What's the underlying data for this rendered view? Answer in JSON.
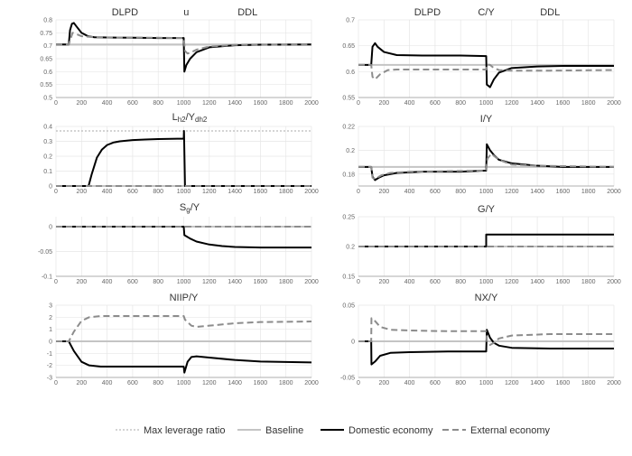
{
  "legend": [
    {
      "label": "Max leverage ratio",
      "color": "#aaaaaa",
      "dash": "2,2",
      "width": 1
    },
    {
      "label": "Baseline",
      "color": "#c4c4c4",
      "dash": "",
      "width": 2
    },
    {
      "label": "Domestic economy",
      "color": "#000000",
      "dash": "",
      "width": 2
    },
    {
      "label": "External economy",
      "color": "#8c8c8c",
      "dash": "7,4",
      "width": 2
    }
  ],
  "chart_data": [
    {
      "type": "line",
      "title": "",
      "phase_labels": [
        "DLPD",
        "u",
        "DDL"
      ],
      "xlim": [
        0,
        2000
      ],
      "xticks": [
        "0",
        "200",
        "400",
        "600",
        "800",
        "1000",
        "1200",
        "1400",
        "1600",
        "1800",
        "2000"
      ],
      "ylim": [
        0.5,
        0.8
      ],
      "yticks": [
        "0.5",
        "0.55",
        "0.6",
        "0.65",
        "0.7",
        "0.75",
        "0.8"
      ],
      "series": [
        {
          "name": "Baseline",
          "x": [
            0,
            2000
          ],
          "y": [
            0.705,
            0.705
          ]
        },
        {
          "name": "External economy",
          "x": [
            0,
            100,
            110,
            130,
            160,
            200,
            300,
            500,
            800,
            1000,
            1010,
            1030,
            1060,
            1100,
            1200,
            1400,
            2000
          ],
          "y": [
            0.705,
            0.705,
            0.72,
            0.75,
            0.745,
            0.737,
            0.733,
            0.732,
            0.731,
            0.73,
            0.68,
            0.67,
            0.675,
            0.685,
            0.697,
            0.703,
            0.705
          ]
        },
        {
          "name": "Domestic economy",
          "x": [
            0,
            100,
            110,
            125,
            140,
            160,
            200,
            250,
            300,
            400,
            600,
            800,
            1000,
            1005,
            1020,
            1050,
            1100,
            1200,
            1400,
            1600,
            2000
          ],
          "y": [
            0.705,
            0.705,
            0.76,
            0.785,
            0.788,
            0.775,
            0.75,
            0.737,
            0.733,
            0.732,
            0.731,
            0.73,
            0.73,
            0.6,
            0.625,
            0.65,
            0.675,
            0.694,
            0.702,
            0.704,
            0.705
          ]
        }
      ]
    },
    {
      "type": "line",
      "title": "C/Y",
      "phase_labels": [
        "DLPD",
        "",
        "DDL"
      ],
      "xlim": [
        0,
        2000
      ],
      "xticks": [
        "0",
        "200",
        "400",
        "600",
        "800",
        "1000",
        "1200",
        "1400",
        "1600",
        "1800",
        "2000"
      ],
      "ylim": [
        0.55,
        0.7
      ],
      "yticks": [
        "0.55",
        "0.6",
        "0.65",
        "0.7"
      ],
      "series": [
        {
          "name": "Baseline",
          "x": [
            0,
            2000
          ],
          "y": [
            0.613,
            0.613
          ]
        },
        {
          "name": "External economy",
          "x": [
            0,
            100,
            110,
            130,
            170,
            230,
            300,
            600,
            1000,
            1005,
            1030,
            1060,
            1100,
            1200,
            1500,
            2000
          ],
          "y": [
            0.613,
            0.613,
            0.59,
            0.585,
            0.595,
            0.603,
            0.604,
            0.604,
            0.604,
            0.614,
            0.613,
            0.607,
            0.603,
            0.602,
            0.602,
            0.603
          ]
        },
        {
          "name": "Domestic economy",
          "x": [
            0,
            100,
            110,
            130,
            150,
            200,
            300,
            500,
            800,
            1000,
            1005,
            1030,
            1060,
            1100,
            1200,
            1400,
            1600,
            2000
          ],
          "y": [
            0.613,
            0.613,
            0.648,
            0.655,
            0.648,
            0.638,
            0.632,
            0.631,
            0.631,
            0.63,
            0.575,
            0.57,
            0.585,
            0.598,
            0.607,
            0.61,
            0.611,
            0.611
          ]
        }
      ]
    },
    {
      "type": "line",
      "title": "",
      "xlim": [
        0,
        2000
      ],
      "xticks": [
        "0",
        "200",
        "400",
        "600",
        "800",
        "1000",
        "1200",
        "1400",
        "1600",
        "1800",
        "2000"
      ],
      "ylim": [
        0,
        0.4
      ],
      "yticks": [
        "0",
        "0.1",
        "0.2",
        "0.3",
        "0.4"
      ],
      "series": [
        {
          "name": "Max leverage ratio",
          "x": [
            0,
            2000
          ],
          "y": [
            0.37,
            0.37
          ]
        },
        {
          "name": "Baseline",
          "x": [
            0,
            2000
          ],
          "y": [
            0,
            0
          ]
        },
        {
          "name": "External economy",
          "x": [
            0,
            2000
          ],
          "y": [
            0,
            0
          ]
        },
        {
          "name": "Domestic economy",
          "x": [
            0,
            255,
            280,
            320,
            360,
            400,
            450,
            500,
            600,
            700,
            800,
            900,
            1000,
            1002,
            1010,
            2000
          ],
          "y": [
            0,
            0,
            0.08,
            0.19,
            0.245,
            0.275,
            0.292,
            0.3,
            0.308,
            0.312,
            0.315,
            0.317,
            0.318,
            0.37,
            0,
            0
          ]
        }
      ]
    },
    {
      "type": "line",
      "title": "I/Y",
      "xlim": [
        0,
        2000
      ],
      "xticks": [
        "0",
        "200",
        "400",
        "600",
        "800",
        "1000",
        "1200",
        "1400",
        "1600",
        "1800",
        "2000"
      ],
      "ylim": [
        0.17,
        0.22
      ],
      "yticks": [
        "0.18",
        "0.2",
        "0.22"
      ],
      "series": [
        {
          "name": "Baseline",
          "x": [
            0,
            2000
          ],
          "y": [
            0.186,
            0.186
          ]
        },
        {
          "name": "External economy",
          "x": [
            0,
            100,
            110,
            130,
            180,
            250,
            400,
            1000,
            1010,
            1040,
            1100,
            1200,
            1400,
            2000
          ],
          "y": [
            0.186,
            0.186,
            0.177,
            0.176,
            0.179,
            0.181,
            0.182,
            0.183,
            0.193,
            0.197,
            0.192,
            0.188,
            0.187,
            0.186
          ]
        },
        {
          "name": "Domestic economy",
          "x": [
            0,
            100,
            110,
            130,
            160,
            200,
            300,
            500,
            800,
            1000,
            1005,
            1030,
            1060,
            1100,
            1200,
            1400,
            1600,
            2000
          ],
          "y": [
            0.186,
            0.186,
            0.178,
            0.175,
            0.177,
            0.179,
            0.181,
            0.182,
            0.182,
            0.183,
            0.205,
            0.2,
            0.196,
            0.192,
            0.189,
            0.187,
            0.186,
            0.186
          ]
        }
      ]
    },
    {
      "type": "line",
      "title": "",
      "xlim": [
        0,
        2000
      ],
      "xticks": [
        "0",
        "200",
        "400",
        "600",
        "800",
        "1000",
        "1200",
        "1400",
        "1600",
        "1800",
        "2000"
      ],
      "ylim": [
        -0.1,
        0.02
      ],
      "yticks": [
        "-0.1",
        "-0.05",
        "0"
      ],
      "series": [
        {
          "name": "Baseline",
          "x": [
            0,
            2000
          ],
          "y": [
            0,
            0
          ]
        },
        {
          "name": "External economy",
          "x": [
            0,
            2000
          ],
          "y": [
            0,
            0
          ]
        },
        {
          "name": "Domestic economy",
          "x": [
            0,
            1000,
            1005,
            1050,
            1100,
            1200,
            1300,
            1400,
            1600,
            1800,
            2000
          ],
          "y": [
            0,
            0,
            -0.017,
            -0.024,
            -0.03,
            -0.036,
            -0.039,
            -0.041,
            -0.042,
            -0.042,
            -0.042
          ]
        }
      ]
    },
    {
      "type": "line",
      "title": "G/Y",
      "xlim": [
        0,
        2000
      ],
      "xticks": [
        "0",
        "200",
        "400",
        "600",
        "800",
        "1000",
        "1200",
        "1400",
        "1600",
        "1800",
        "2000"
      ],
      "ylim": [
        0.15,
        0.25
      ],
      "yticks": [
        "0.15",
        "0.2",
        "0.25"
      ],
      "series": [
        {
          "name": "Baseline",
          "x": [
            0,
            2000
          ],
          "y": [
            0.2,
            0.2
          ]
        },
        {
          "name": "External economy",
          "x": [
            0,
            2000
          ],
          "y": [
            0.2,
            0.2
          ]
        },
        {
          "name": "Domestic economy",
          "x": [
            0,
            1000,
            1000,
            2000
          ],
          "y": [
            0.2,
            0.2,
            0.22,
            0.22
          ]
        }
      ]
    },
    {
      "type": "line",
      "title": "NIIP/Y",
      "xlim": [
        0,
        2000
      ],
      "xticks": [
        "0",
        "200",
        "400",
        "600",
        "800",
        "1000",
        "1200",
        "1400",
        "1600",
        "1800",
        "2000"
      ],
      "ylim": [
        -3,
        3
      ],
      "yticks": [
        "-3",
        "-2",
        "-1",
        "0",
        "1",
        "2",
        "3"
      ],
      "series": [
        {
          "name": "Baseline",
          "x": [
            0,
            2000
          ],
          "y": [
            0,
            0
          ]
        },
        {
          "name": "External economy",
          "x": [
            0,
            100,
            140,
            200,
            260,
            350,
            500,
            800,
            1000,
            1010,
            1060,
            1100,
            1200,
            1400,
            1600,
            2000
          ],
          "y": [
            0,
            0,
            0.8,
            1.7,
            2.0,
            2.1,
            2.1,
            2.1,
            2.1,
            1.8,
            1.3,
            1.2,
            1.3,
            1.5,
            1.6,
            1.65
          ]
        },
        {
          "name": "Domestic economy",
          "x": [
            0,
            100,
            140,
            200,
            260,
            350,
            500,
            800,
            1000,
            1005,
            1030,
            1060,
            1100,
            1200,
            1400,
            1600,
            2000
          ],
          "y": [
            0,
            0,
            -0.8,
            -1.7,
            -2.0,
            -2.1,
            -2.1,
            -2.1,
            -2.1,
            -2.6,
            -1.7,
            -1.3,
            -1.25,
            -1.35,
            -1.55,
            -1.68,
            -1.75
          ]
        }
      ]
    },
    {
      "type": "line",
      "title": "NX/Y",
      "xlim": [
        0,
        2000
      ],
      "xticks": [
        "0",
        "200",
        "400",
        "600",
        "800",
        "1000",
        "1200",
        "1400",
        "1600",
        "1800",
        "2000"
      ],
      "ylim": [
        -0.05,
        0.05
      ],
      "yticks": [
        "-0.05",
        "0",
        "0.05"
      ],
      "series": [
        {
          "name": "Baseline",
          "x": [
            0,
            2000
          ],
          "y": [
            0,
            0
          ]
        },
        {
          "name": "External economy",
          "x": [
            0,
            100,
            102,
            130,
            170,
            250,
            400,
            700,
            1000,
            1005,
            1030,
            1060,
            1100,
            1200,
            1500,
            2000
          ],
          "y": [
            0,
            0,
            0.032,
            0.028,
            0.02,
            0.016,
            0.015,
            0.014,
            0.014,
            0.0,
            -0.005,
            -0.002,
            0.004,
            0.008,
            0.01,
            0.01
          ]
        },
        {
          "name": "Domestic economy",
          "x": [
            0,
            100,
            102,
            130,
            170,
            250,
            400,
            700,
            1000,
            1005,
            1030,
            1060,
            1100,
            1200,
            1500,
            2000
          ],
          "y": [
            0,
            0,
            -0.032,
            -0.028,
            -0.02,
            -0.016,
            -0.015,
            -0.014,
            -0.014,
            0.016,
            0.005,
            -0.002,
            -0.006,
            -0.009,
            -0.01,
            -0.01
          ]
        }
      ]
    }
  ]
}
